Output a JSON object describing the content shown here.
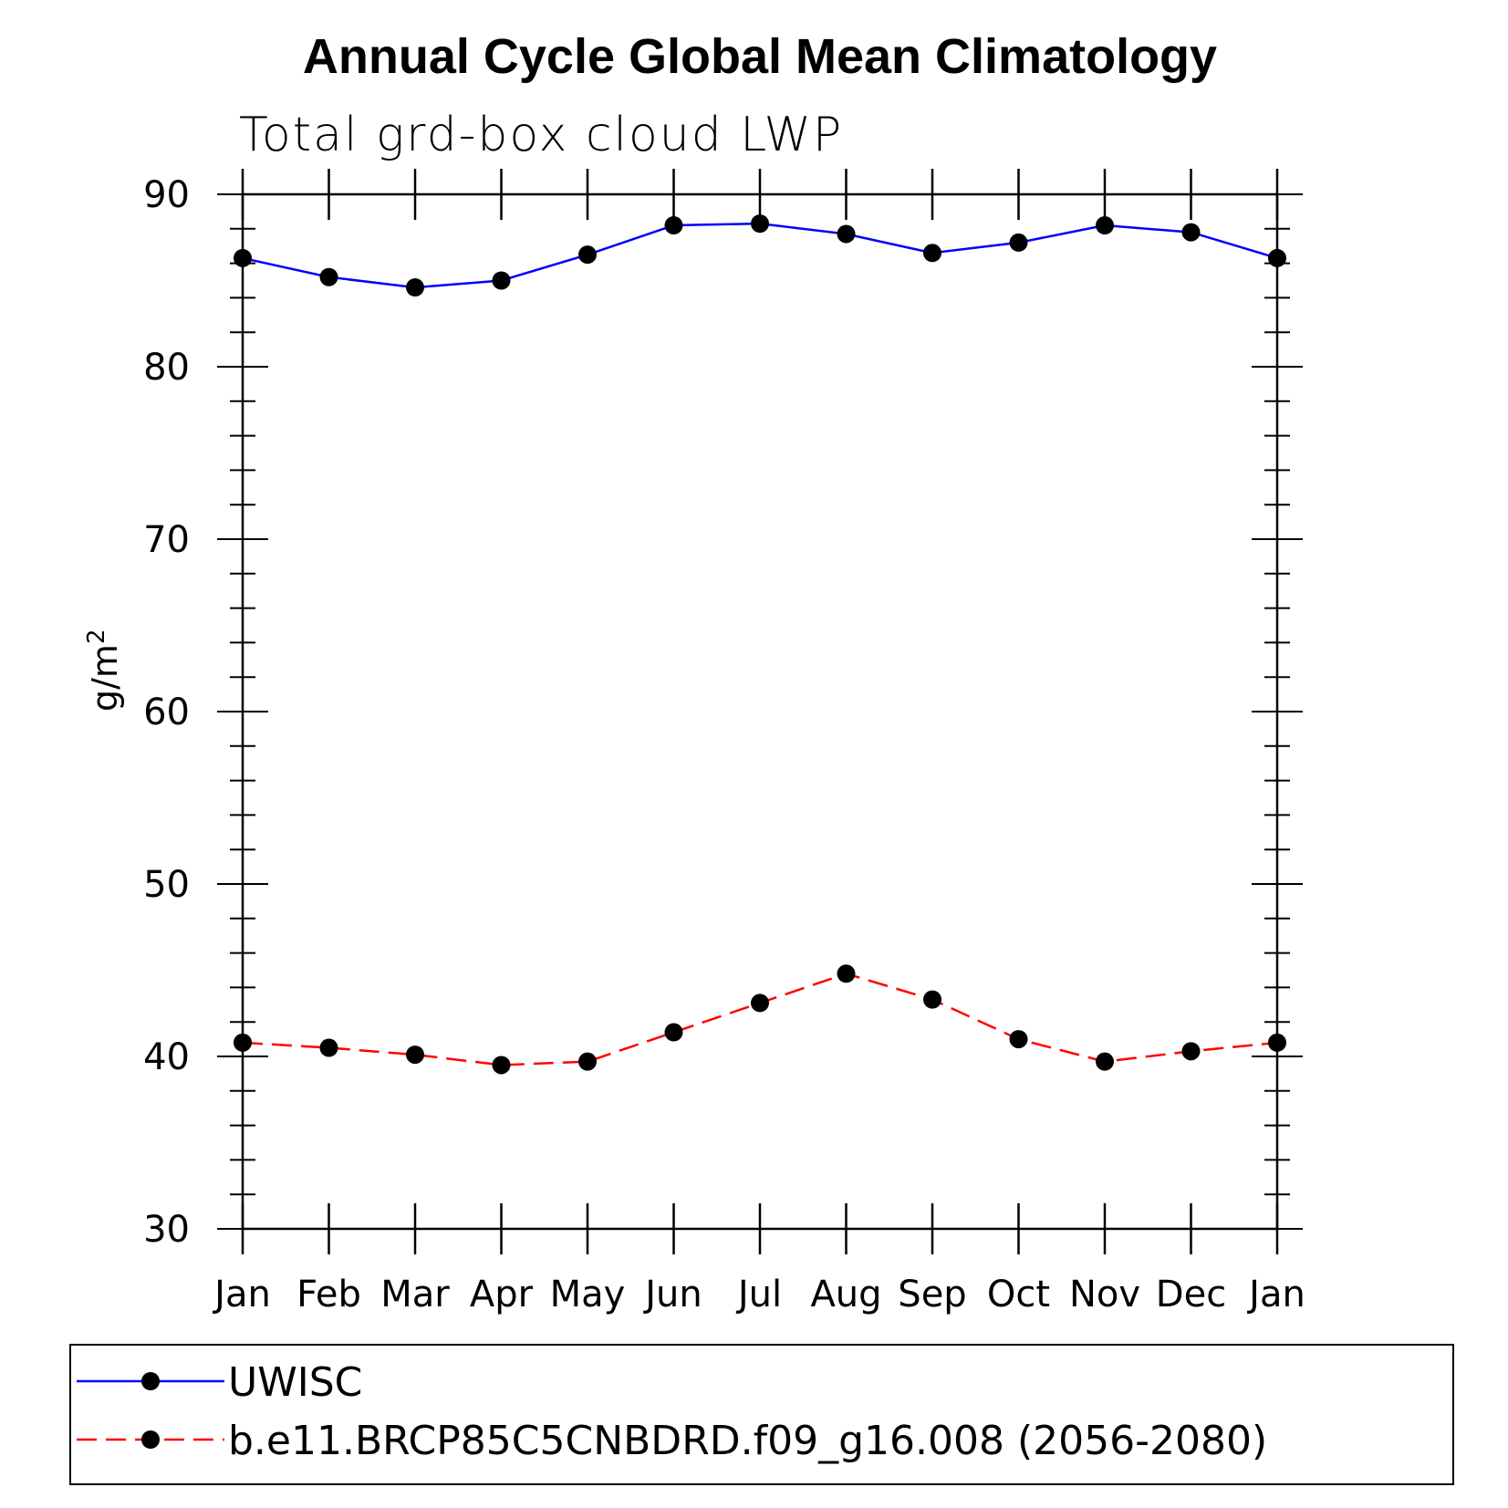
{
  "chart_data": {
    "type": "line",
    "title": "Annual Cycle Global Mean Climatology",
    "subtitle": "Total grd-box cloud LWP",
    "ylabel": "g/m",
    "ylabel_sup": "2",
    "xlabel": "",
    "ylim": [
      30,
      90
    ],
    "yticks": [
      30,
      40,
      50,
      60,
      70,
      80,
      90
    ],
    "categories": [
      "Jan",
      "Feb",
      "Mar",
      "Apr",
      "May",
      "Jun",
      "Jul",
      "Aug",
      "Sep",
      "Oct",
      "Nov",
      "Dec",
      "Jan"
    ],
    "series": [
      {
        "name": "UWISC",
        "color": "#0000ff",
        "dashed": false,
        "values": [
          86.3,
          85.2,
          84.6,
          85.0,
          86.5,
          88.2,
          88.3,
          87.7,
          86.6,
          87.2,
          88.2,
          87.8,
          86.3
        ]
      },
      {
        "name": "b.e11.BRCP85C5CNBDRD.f09_g16.008 (2056-2080)",
        "color": "#ff0000",
        "dashed": true,
        "values": [
          40.8,
          40.5,
          40.1,
          39.5,
          39.7,
          41.4,
          43.1,
          44.8,
          43.3,
          41.0,
          39.7,
          40.3,
          40.8
        ]
      }
    ],
    "legend_position": "bottom"
  }
}
